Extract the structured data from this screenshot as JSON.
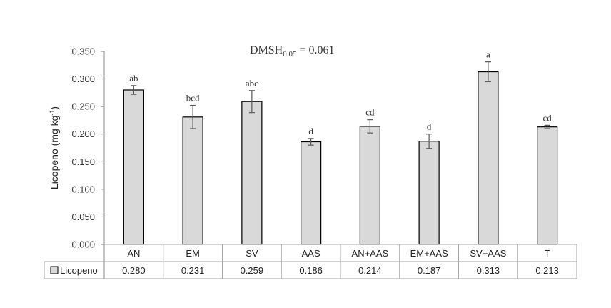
{
  "chart_data": {
    "type": "bar",
    "categories": [
      "AN",
      "EM",
      "SV",
      "AAS",
      "AN+AAS",
      "EM+AAS",
      "SV+AAS",
      "T"
    ],
    "series": [
      {
        "name": "Licopeno",
        "values": [
          0.28,
          0.231,
          0.259,
          0.186,
          0.214,
          0.187,
          0.313,
          0.213
        ],
        "errors": [
          0.008,
          0.021,
          0.02,
          0.006,
          0.012,
          0.013,
          0.018,
          0.003
        ],
        "letters": [
          "ab",
          "bcd",
          "abc",
          "d",
          "cd",
          "d",
          "a",
          "cd"
        ]
      }
    ],
    "table_values": [
      "0.280",
      "0.231",
      "0.259",
      "0.186",
      "0.214",
      "0.187",
      "0.313",
      "0.213"
    ],
    "ylabel_main": "Licopeno  (mg kg",
    "ylabel_sup": "-1",
    "ylabel_end": ")",
    "ylim": [
      0,
      0.35
    ],
    "ytick_step": 0.05,
    "annotation": {
      "main": "DMSH",
      "sub": "0.05",
      "rest": " = 0.061"
    },
    "grid": false,
    "legend": "data-table",
    "bar_color": "#d9d9d9",
    "bar_stroke": "#000000"
  }
}
